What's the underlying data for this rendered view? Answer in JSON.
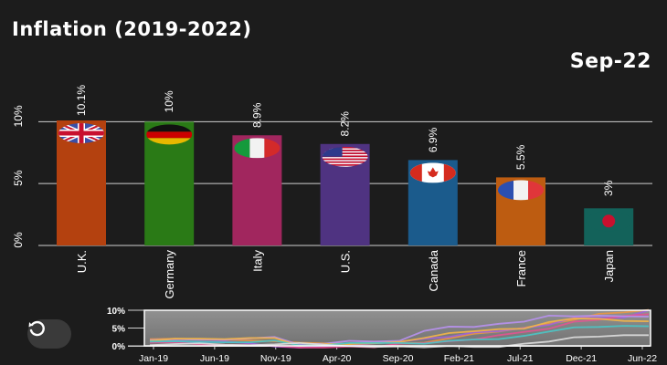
{
  "title": "Inflation (2019-2022)",
  "date_label": "Sep-22",
  "icons": {
    "reset": "rotate-ccw-icon"
  },
  "chart_data": [
    {
      "type": "bar",
      "categories": [
        "U.K.",
        "Germany",
        "Italy",
        "U.S.",
        "Canada",
        "France",
        "Japan"
      ],
      "values": [
        10.1,
        10,
        8.9,
        8.2,
        6.9,
        5.5,
        3
      ],
      "value_labels": [
        "10.1%",
        "10%",
        "8.9%",
        "8.2%",
        "6.9%",
        "5.5%",
        "3%"
      ],
      "colors": [
        "#b4410f",
        "#2a7a16",
        "#a1265e",
        "#4f3381",
        "#1b5b8c",
        "#bd5c11",
        "#13625a"
      ],
      "flags": [
        "uk-flag-icon",
        "germany-flag-icon",
        "italy-flag-icon",
        "us-flag-icon",
        "canada-flag-icon",
        "france-flag-icon",
        "japan-flag-icon"
      ],
      "yticks": [
        "0%",
        "5%",
        "10%"
      ],
      "ytick_values": [
        0,
        5,
        10
      ],
      "ylim": [
        0,
        10.1
      ],
      "grid": true
    },
    {
      "type": "line",
      "x_ticks": [
        "Jan-19",
        "Jun-19",
        "Nov-19",
        "Apr-20",
        "Sep-20",
        "Feb-21",
        "Jul-21",
        "Dec-21",
        "Jun-22"
      ],
      "yticks": [
        "0%",
        "5%",
        "10%"
      ],
      "ytick_values": [
        0,
        5,
        10
      ],
      "ylim": [
        0,
        10
      ],
      "brush_selection": [
        "Jan-19",
        "Sep-22"
      ],
      "series": [
        {
          "color": "#e8913a",
          "values": [
            1.9,
            2.0,
            1.9,
            1.7,
            1.5,
            1.3,
            0.9,
            0.7,
            0.6,
            1.0,
            0.7,
            0.9,
            2.1,
            3.4,
            4.0,
            5.1,
            6.2,
            7.3,
            9.0,
            9.4,
            10.1
          ]
        },
        {
          "color": "#9a5bd6",
          "values": [
            1.5,
            1.4,
            1.0,
            1.2,
            0.7,
            -0.2,
            -0.8,
            -0.1,
            0.0,
            0.7,
            1.1,
            2.0,
            2.5,
            3.8,
            4.1,
            5.0,
            5.9,
            7.9,
            7.9,
            7.9,
            10.0
          ]
        },
        {
          "color": "#e04a8c",
          "values": [
            0.9,
            1.0,
            0.4,
            0.2,
            0.2,
            0.0,
            -0.6,
            -0.6,
            -0.2,
            -0.4,
            0.6,
            0.8,
            1.3,
            1.8,
            3.0,
            3.9,
            4.8,
            6.8,
            7.3,
            8.4,
            8.9
          ]
        },
        {
          "color": "#b58cf0",
          "values": [
            1.6,
            1.9,
            1.7,
            1.7,
            2.1,
            2.5,
            0.3,
            0.6,
            1.4,
            1.2,
            1.4,
            4.2,
            5.4,
            5.3,
            6.2,
            6.8,
            8.5,
            8.3,
            8.5,
            8.3,
            8.2
          ]
        },
        {
          "color": "#f3b23c",
          "values": [
            1.4,
            2.0,
            2.0,
            1.9,
            2.2,
            2.2,
            0.0,
            0.5,
            0.5,
            0.7,
            1.1,
            2.2,
            3.6,
            4.1,
            4.7,
            4.8,
            6.7,
            7.7,
            7.6,
            7.0,
            6.9
          ]
        },
        {
          "color": "#3fc4c4",
          "values": [
            1.2,
            1.3,
            1.1,
            1.0,
            1.0,
            1.5,
            0.1,
            0.2,
            0.8,
            0.8,
            0.8,
            0.6,
            1.4,
            1.8,
            1.9,
            2.8,
            4.0,
            5.2,
            5.3,
            5.6,
            5.5
          ]
        },
        {
          "color": "#dddddd",
          "values": [
            0.2,
            0.5,
            0.7,
            0.3,
            0.2,
            0.4,
            0.8,
            0.3,
            -0.1,
            -0.3,
            -0.2,
            -0.4,
            -0.1,
            -0.3,
            -0.3,
            0.6,
            1.2,
            2.4,
            2.6,
            3.0,
            3.0
          ]
        }
      ]
    }
  ]
}
